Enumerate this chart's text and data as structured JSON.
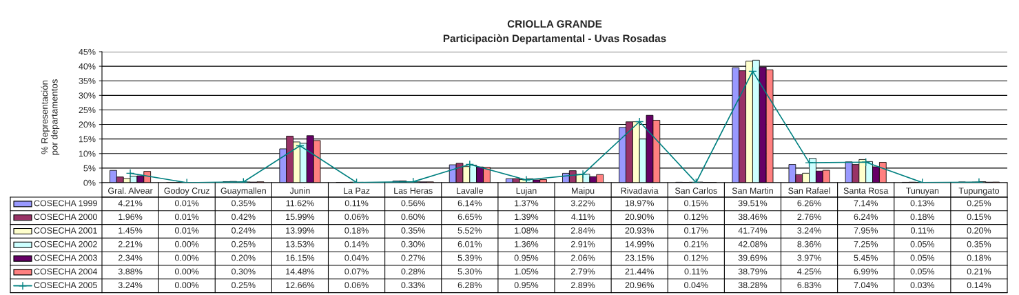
{
  "chart_data": {
    "type": "bar",
    "title": "CRIOLLA GRANDE",
    "subtitle": "Participaciòn Departamental - Uvas Rosadas",
    "ylabel": "% Representación\npor departamentos",
    "categories": [
      "Gral. Alvear",
      "Godoy Cruz",
      "Guaymallen",
      "Junin",
      "La Paz",
      "Las Heras",
      "Lavalle",
      "Lujan",
      "Maipu",
      "Rivadavia",
      "San Carlos",
      "San Martin",
      "San Rafael",
      "Santa Rosa",
      "Tunuyan",
      "Tupungato"
    ],
    "ylim": [
      0,
      45
    ],
    "yticks": [
      {
        "value": 0,
        "label": "0%"
      },
      {
        "value": 5,
        "label": "5%"
      },
      {
        "value": 10,
        "label": "10%"
      },
      {
        "value": 15,
        "label": "15%"
      },
      {
        "value": 20,
        "label": "20%"
      },
      {
        "value": 25,
        "label": "25%"
      },
      {
        "value": 30,
        "label": "30%"
      },
      {
        "value": 35,
        "label": "35%"
      },
      {
        "value": 40,
        "label": "40%"
      },
      {
        "value": 45,
        "label": "45%"
      }
    ],
    "grid": "y",
    "legend": "bottom left",
    "series": [
      {
        "name": "COSECHA 1999",
        "color": "#9999ff",
        "values": [
          4.21,
          0.01,
          0.35,
          11.62,
          0.11,
          0.56,
          6.14,
          1.37,
          3.22,
          18.97,
          0.15,
          39.51,
          6.26,
          7.14,
          0.13,
          0.25
        ],
        "value_labels": [
          "4.21%",
          "0.01%",
          "0.35%",
          "11.62%",
          "0.11%",
          "0.56%",
          "6.14%",
          "1.37%",
          "3.22%",
          "18.97%",
          "0.15%",
          "39.51%",
          "6.26%",
          "7.14%",
          "0.13%",
          "0.25%"
        ]
      },
      {
        "name": "COSECHA 2000",
        "color": "#993366",
        "values": [
          1.96,
          0.01,
          0.42,
          15.99,
          0.06,
          0.6,
          6.65,
          1.39,
          4.11,
          20.9,
          0.12,
          38.46,
          2.76,
          6.24,
          0.18,
          0.15
        ],
        "value_labels": [
          "1.96%",
          "0.01%",
          "0.42%",
          "15.99%",
          "0.06%",
          "0.60%",
          "6.65%",
          "1.39%",
          "4.11%",
          "20.90%",
          "0.12%",
          "38.46%",
          "2.76%",
          "6.24%",
          "0.18%",
          "0.15%"
        ]
      },
      {
        "name": "COSECHA 2001",
        "color": "#ffffcc",
        "values": [
          1.45,
          0.01,
          0.24,
          13.99,
          0.18,
          0.35,
          5.52,
          1.08,
          2.84,
          20.93,
          0.17,
          41.74,
          3.24,
          7.95,
          0.11,
          0.2
        ],
        "value_labels": [
          "1.45%",
          "0.01%",
          "0.24%",
          "13.99%",
          "0.18%",
          "0.35%",
          "5.52%",
          "1.08%",
          "2.84%",
          "20.93%",
          "0.17%",
          "41.74%",
          "3.24%",
          "7.95%",
          "0.11%",
          "0.20%"
        ]
      },
      {
        "name": "COSECHA 2002",
        "color": "#ccffff",
        "values": [
          2.21,
          0.0,
          0.25,
          13.53,
          0.14,
          0.3,
          6.01,
          1.36,
          2.91,
          14.99,
          0.21,
          42.08,
          8.36,
          7.25,
          0.05,
          0.35
        ],
        "value_labels": [
          "2.21%",
          "0.00%",
          "0.25%",
          "13.53%",
          "0.14%",
          "0.30%",
          "6.01%",
          "1.36%",
          "2.91%",
          "14.99%",
          "0.21%",
          "42.08%",
          "8.36%",
          "7.25%",
          "0.05%",
          "0.35%"
        ]
      },
      {
        "name": "COSECHA 2003",
        "color": "#660066",
        "values": [
          2.34,
          0.0,
          0.2,
          16.15,
          0.04,
          0.27,
          5.39,
          0.95,
          2.06,
          23.15,
          0.12,
          39.69,
          3.97,
          5.45,
          0.05,
          0.18
        ],
        "value_labels": [
          "2.34%",
          "0.00%",
          "0.20%",
          "16.15%",
          "0.04%",
          "0.27%",
          "5.39%",
          "0.95%",
          "2.06%",
          "23.15%",
          "0.12%",
          "39.69%",
          "3.97%",
          "5.45%",
          "0.05%",
          "0.18%"
        ]
      },
      {
        "name": "COSECHA 2004",
        "color": "#ff8080",
        "values": [
          3.88,
          0.0,
          0.3,
          14.48,
          0.07,
          0.28,
          5.3,
          1.05,
          2.79,
          21.44,
          0.11,
          38.79,
          4.25,
          6.99,
          0.05,
          0.21
        ],
        "value_labels": [
          "3.88%",
          "0.00%",
          "0.30%",
          "14.48%",
          "0.07%",
          "0.28%",
          "5.30%",
          "1.05%",
          "2.79%",
          "21.44%",
          "0.11%",
          "38.79%",
          "4.25%",
          "6.99%",
          "0.05%",
          "0.21%"
        ]
      },
      {
        "name": "COSECHA 2005",
        "type": "line",
        "marker": "cross",
        "color": "#008080",
        "values": [
          3.24,
          0.0,
          0.25,
          12.66,
          0.06,
          0.33,
          6.28,
          0.95,
          2.89,
          20.96,
          0.04,
          38.28,
          6.83,
          7.04,
          0.03,
          0.14
        ],
        "value_labels": [
          "3.24%",
          "0.00%",
          "0.25%",
          "12.66%",
          "0.06%",
          "0.33%",
          "6.28%",
          "0.95%",
          "2.89%",
          "20.96%",
          "0.04%",
          "38.28%",
          "6.83%",
          "7.04%",
          "0.03%",
          "0.14%"
        ]
      }
    ]
  }
}
